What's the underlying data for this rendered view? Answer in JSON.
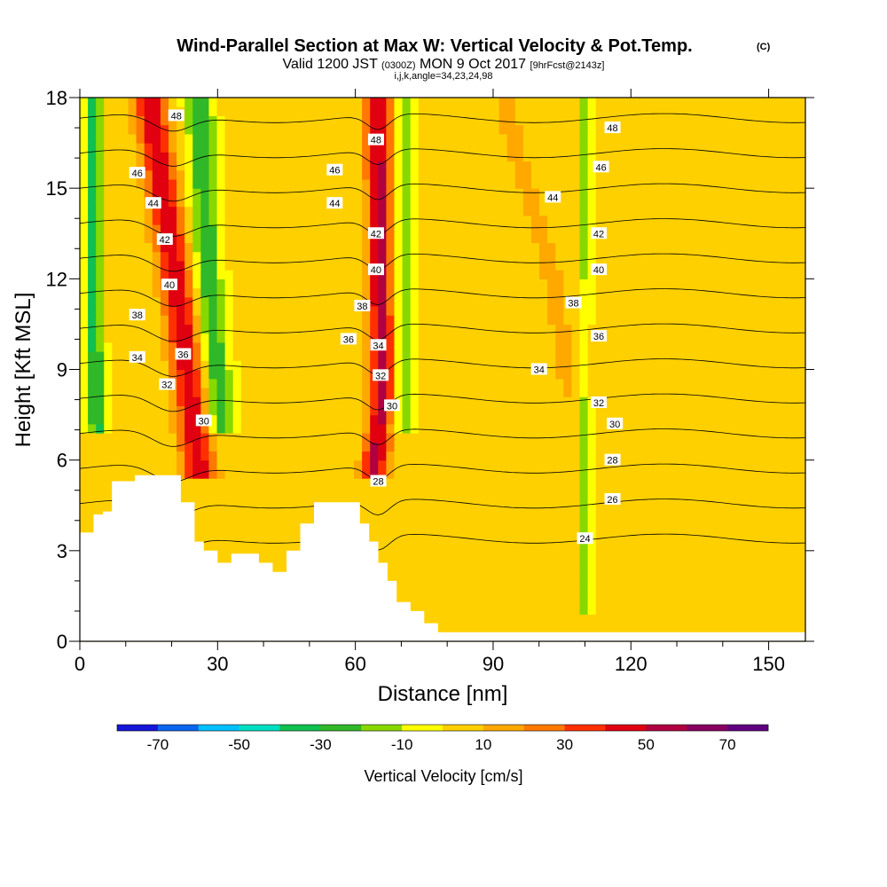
{
  "chart_data": {
    "type": "heatmap",
    "title_main": "Wind-Parallel Section at Max W: Vertical Velocity & Pot.Temp.",
    "title_mark": "(C)",
    "subtitle_a": "Valid 1200 JST",
    "subtitle_b": "(0300Z)",
    "subtitle_c": "MON 9 Oct 2017",
    "subtitle_d": "[9hrFcst@2143z]",
    "subtitle2": "i,j,k,angle=34,23,24,98",
    "xlabel": "Distance [nm]",
    "ylabel": "Height [Kft MSL]",
    "xlim": [
      0,
      158
    ],
    "ylim": [
      0,
      18
    ],
    "xticks": [
      "0",
      "30",
      "60",
      "90",
      "120",
      "150"
    ],
    "xtick_values": [
      0,
      30,
      60,
      90,
      120,
      150
    ],
    "yticks": [
      "0",
      "3",
      "6",
      "9",
      "12",
      "15",
      "18"
    ],
    "ytick_values": [
      0,
      3,
      6,
      9,
      12,
      15,
      18
    ],
    "colorbar_label": "Vertical Velocity [cm/s]",
    "colorbar_ticks": [
      "-70",
      "-50",
      "-30",
      "-10",
      "10",
      "30",
      "50",
      "70"
    ],
    "colorbar_tick_values": [
      -70,
      -50,
      -30,
      -10,
      10,
      30,
      50,
      70
    ],
    "colorbar_bins": [
      -80,
      -70,
      -60,
      -50,
      -40,
      -30,
      -20,
      -10,
      0,
      10,
      20,
      30,
      40,
      50,
      60,
      70,
      80
    ],
    "colors": [
      "#1616d9",
      "#0b66ee",
      "#00c0ff",
      "#00e0c0",
      "#10c050",
      "#30b828",
      "#88d800",
      "#ffff00",
      "#ffd000",
      "#ffa800",
      "#ff7800",
      "#ff3000",
      "#e00010",
      "#b00040",
      "#880060",
      "#600080"
    ],
    "background_level": 3,
    "features": [
      {
        "name": "updraft-1",
        "x": [
          15,
          21,
          25,
          26
        ],
        "y": [
          18,
          12,
          7,
          5.5
        ],
        "width": 3.5,
        "w": 45
      },
      {
        "name": "updraft-2",
        "x": [
          65,
          65.5,
          66,
          64
        ],
        "y": [
          18,
          12,
          8,
          5.5
        ],
        "width": 2.8,
        "w": 50
      },
      {
        "name": "downdraft-1",
        "x": [
          26,
          28,
          31
        ],
        "y": [
          18,
          12,
          7
        ],
        "width": 3,
        "w": -30
      },
      {
        "name": "downdraft-2",
        "x": [
          71,
          71,
          70
        ],
        "y": [
          18,
          12,
          7
        ],
        "width": 2.5,
        "w": -20
      },
      {
        "name": "downdraft-3",
        "x": [
          3,
          3,
          4
        ],
        "y": [
          18,
          10,
          7
        ],
        "width": 2,
        "w": -35
      },
      {
        "name": "yellow-band",
        "x": [
          92,
          103,
          107
        ],
        "y": [
          18,
          12,
          8
        ],
        "width": 5,
        "w": 8
      },
      {
        "name": "downdraft-4",
        "x": [
          110,
          110
        ],
        "y": [
          2.2,
          1.0
        ],
        "width": 1.3,
        "w": -15
      }
    ],
    "theta_labels": [
      {
        "text": "48",
        "x": 21,
        "y": 17.4
      },
      {
        "text": "46",
        "x": 12.5,
        "y": 15.5
      },
      {
        "text": "44",
        "x": 16,
        "y": 14.5
      },
      {
        "text": "42",
        "x": 18.5,
        "y": 13.3
      },
      {
        "text": "40",
        "x": 19.5,
        "y": 11.8
      },
      {
        "text": "38",
        "x": 12.5,
        "y": 10.8
      },
      {
        "text": "36",
        "x": 22.5,
        "y": 9.5
      },
      {
        "text": "34",
        "x": 12.5,
        "y": 9.4
      },
      {
        "text": "32",
        "x": 19,
        "y": 8.5
      },
      {
        "text": "30",
        "x": 27,
        "y": 7.3
      },
      {
        "text": "46",
        "x": 55.5,
        "y": 15.6
      },
      {
        "text": "44",
        "x": 55.5,
        "y": 14.5
      },
      {
        "text": "48",
        "x": 64.5,
        "y": 16.6
      },
      {
        "text": "42",
        "x": 64.5,
        "y": 13.5
      },
      {
        "text": "40",
        "x": 64.5,
        "y": 12.3
      },
      {
        "text": "38",
        "x": 61.5,
        "y": 11.1
      },
      {
        "text": "36",
        "x": 58.5,
        "y": 10.0
      },
      {
        "text": "34",
        "x": 65,
        "y": 9.8
      },
      {
        "text": "32",
        "x": 65.5,
        "y": 8.8
      },
      {
        "text": "30",
        "x": 68,
        "y": 7.8
      },
      {
        "text": "28",
        "x": 65,
        "y": 5.3
      },
      {
        "text": "48",
        "x": 116,
        "y": 17.0
      },
      {
        "text": "46",
        "x": 113.5,
        "y": 15.7
      },
      {
        "text": "44",
        "x": 103,
        "y": 14.7
      },
      {
        "text": "42",
        "x": 113,
        "y": 13.5
      },
      {
        "text": "40",
        "x": 113,
        "y": 12.3
      },
      {
        "text": "38",
        "x": 107.5,
        "y": 11.2
      },
      {
        "text": "36",
        "x": 113,
        "y": 10.1
      },
      {
        "text": "34",
        "x": 100,
        "y": 9.0
      },
      {
        "text": "32",
        "x": 113,
        "y": 7.9
      },
      {
        "text": "30",
        "x": 116.5,
        "y": 7.2
      },
      {
        "text": "28",
        "x": 116,
        "y": 6.0
      },
      {
        "text": "26",
        "x": 116,
        "y": 4.7
      },
      {
        "text": "24",
        "x": 110,
        "y": 3.4
      }
    ],
    "terrain": {
      "x": [
        0,
        3,
        3,
        5,
        5,
        7,
        7,
        9,
        9,
        12,
        12,
        16,
        16,
        22,
        22,
        25,
        25,
        27,
        27,
        30,
        30,
        33,
        33,
        39,
        39,
        42,
        42,
        45,
        45,
        48,
        48,
        51,
        51,
        54,
        54,
        58,
        58,
        61,
        61,
        63,
        63,
        65,
        65,
        67,
        67,
        69,
        69,
        72,
        72,
        75,
        75,
        78,
        78,
        82,
        82,
        85,
        85,
        158
      ],
      "y": [
        3.6,
        3.6,
        4.2,
        4.2,
        4.3,
        4.3,
        5.3,
        5.3,
        5.3,
        5.3,
        5.5,
        5.5,
        5.5,
        5.5,
        4.6,
        4.6,
        3.3,
        3.3,
        3.0,
        3.0,
        2.6,
        2.6,
        2.9,
        2.9,
        2.6,
        2.6,
        2.3,
        2.3,
        3.0,
        3.0,
        3.9,
        3.9,
        4.6,
        4.6,
        4.6,
        4.6,
        4.6,
        4.6,
        3.9,
        3.9,
        3.3,
        3.3,
        2.6,
        2.6,
        2.0,
        2.0,
        1.3,
        1.3,
        1.0,
        1.0,
        0.6,
        0.6,
        0.3,
        0.3,
        0.3,
        0.3,
        0.3,
        0.3
      ]
    }
  }
}
